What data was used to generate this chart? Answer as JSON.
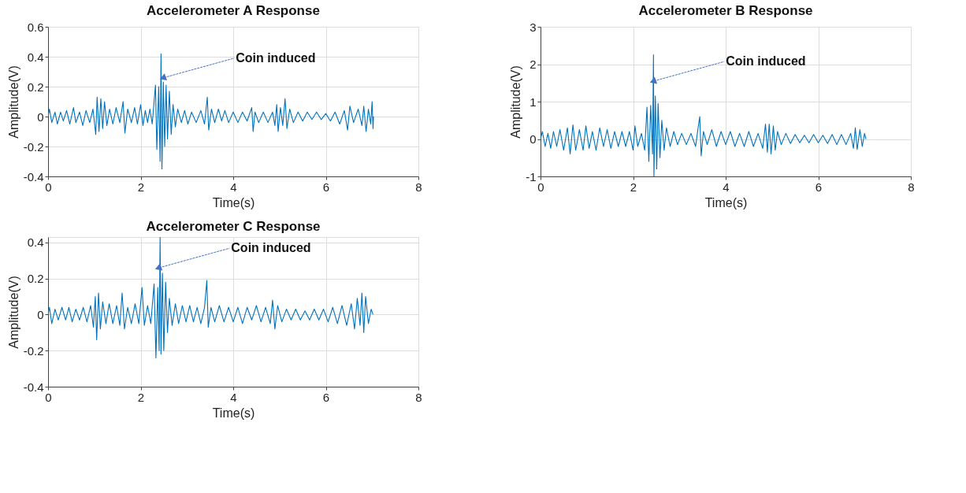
{
  "chart_data": [
    {
      "type": "line",
      "title": "Accelerometer A Response",
      "xlabel": "Time(s)",
      "ylabel": "Amplitude(V)",
      "xlim": [
        0,
        8
      ],
      "xticks": [
        0,
        2,
        4,
        6,
        8
      ],
      "ylim": [
        -0.4,
        0.6
      ],
      "yticks": [
        -0.4,
        -0.2,
        0,
        0.2,
        0.4,
        0.6
      ],
      "grid": true,
      "annotations": [
        {
          "text": "Coin induced",
          "x": 2.5,
          "y": 0.26
        }
      ],
      "series": [
        {
          "color": "#0072bd",
          "x": [
            0.0,
            0.03,
            0.08,
            0.15,
            0.2,
            0.27,
            0.33,
            0.4,
            0.47,
            0.55,
            0.6,
            0.68,
            0.75,
            0.82,
            0.9,
            0.97,
            1.03,
            1.06,
            1.1,
            1.14,
            1.18,
            1.22,
            1.27,
            1.33,
            1.4,
            1.47,
            1.55,
            1.62,
            1.66,
            1.72,
            1.8,
            1.87,
            1.93,
            2.0,
            2.05,
            2.1,
            2.15,
            2.2,
            2.25,
            2.32,
            2.35,
            2.39,
            2.42,
            2.44,
            2.46,
            2.49,
            2.52,
            2.55,
            2.58,
            2.62,
            2.66,
            2.7,
            2.75,
            2.8,
            2.88,
            2.95,
            3.02,
            3.1,
            3.2,
            3.3,
            3.38,
            3.44,
            3.47,
            3.53,
            3.6,
            3.68,
            3.75,
            3.82,
            3.9,
            4.0,
            4.1,
            4.2,
            4.3,
            4.4,
            4.43,
            4.47,
            4.55,
            4.65,
            4.75,
            4.85,
            4.9,
            4.94,
            4.97,
            5.02,
            5.07,
            5.12,
            5.16,
            5.22,
            5.3,
            5.4,
            5.5,
            5.6,
            5.7,
            5.8,
            5.9,
            6.0,
            6.1,
            6.2,
            6.3,
            6.4,
            6.47,
            6.52,
            6.6,
            6.7,
            6.78,
            6.82,
            6.87,
            6.92,
            6.97,
            7.0,
            7.02,
            7.03
          ],
          "values": [
            0.0,
            0.05,
            -0.04,
            0.03,
            -0.05,
            0.03,
            -0.03,
            0.04,
            -0.05,
            0.06,
            -0.04,
            0.03,
            -0.06,
            0.04,
            -0.04,
            0.05,
            -0.12,
            0.13,
            -0.1,
            0.12,
            -0.08,
            0.1,
            -0.06,
            0.05,
            -0.05,
            0.06,
            -0.04,
            0.1,
            -0.11,
            0.05,
            -0.04,
            0.06,
            -0.05,
            0.08,
            -0.06,
            0.04,
            -0.04,
            0.05,
            -0.05,
            0.21,
            -0.22,
            0.2,
            -0.3,
            0.42,
            -0.35,
            0.23,
            -0.2,
            0.21,
            -0.15,
            0.17,
            -0.12,
            0.08,
            -0.07,
            0.05,
            -0.04,
            0.04,
            -0.05,
            0.03,
            -0.04,
            0.04,
            -0.05,
            0.13,
            -0.09,
            0.05,
            -0.04,
            0.05,
            -0.03,
            0.04,
            -0.04,
            0.03,
            -0.04,
            0.03,
            -0.03,
            0.06,
            -0.1,
            0.03,
            -0.04,
            0.03,
            -0.04,
            0.03,
            -0.06,
            0.08,
            -0.1,
            0.06,
            -0.06,
            0.12,
            -0.08,
            0.05,
            -0.04,
            0.03,
            -0.03,
            0.03,
            -0.02,
            0.03,
            -0.02,
            0.02,
            -0.03,
            0.03,
            -0.05,
            0.04,
            -0.09,
            0.07,
            -0.04,
            0.05,
            -0.06,
            0.07,
            -0.1,
            0.05,
            -0.05,
            0.1,
            -0.08,
            0.0
          ]
        }
      ]
    },
    {
      "type": "line",
      "title": "Accelerometer B Response",
      "xlabel": "Time(s)",
      "ylabel": "Amplitude(V)",
      "xlim": [
        0,
        8
      ],
      "xticks": [
        0,
        2,
        4,
        6,
        8
      ],
      "ylim": [
        -1,
        3
      ],
      "yticks": [
        -1,
        0,
        1,
        2,
        3
      ],
      "grid": true,
      "annotations": [
        {
          "text": "Coin induced",
          "x": 2.45,
          "y": 1.55
        }
      ],
      "series": [
        {
          "color": "#0072bd",
          "x": [
            0.0,
            0.04,
            0.1,
            0.16,
            0.22,
            0.28,
            0.35,
            0.42,
            0.5,
            0.58,
            0.64,
            0.7,
            0.76,
            0.84,
            0.92,
            0.98,
            1.05,
            1.12,
            1.2,
            1.28,
            1.36,
            1.44,
            1.52,
            1.6,
            1.68,
            1.76,
            1.84,
            1.92,
            2.0,
            2.04,
            2.1,
            2.18,
            2.25,
            2.3,
            2.34,
            2.38,
            2.42,
            2.44,
            2.45,
            2.48,
            2.51,
            2.54,
            2.58,
            2.62,
            2.67,
            2.72,
            2.8,
            2.88,
            2.96,
            3.05,
            3.15,
            3.25,
            3.35,
            3.41,
            3.44,
            3.47,
            3.52,
            3.6,
            3.7,
            3.8,
            3.9,
            4.0,
            4.1,
            4.2,
            4.3,
            4.4,
            4.5,
            4.6,
            4.7,
            4.8,
            4.86,
            4.9,
            4.94,
            4.98,
            5.03,
            5.07,
            5.12,
            5.2,
            5.3,
            5.4,
            5.5,
            5.6,
            5.7,
            5.8,
            5.9,
            6.0,
            6.1,
            6.2,
            6.3,
            6.4,
            6.5,
            6.6,
            6.7,
            6.76,
            6.8,
            6.84,
            6.9,
            6.95,
            7.0,
            7.03
          ],
          "values": [
            0.0,
            0.2,
            -0.2,
            0.15,
            -0.25,
            0.2,
            -0.2,
            0.25,
            -0.3,
            0.3,
            -0.4,
            0.38,
            -0.3,
            0.25,
            -0.3,
            0.35,
            -0.25,
            0.2,
            -0.3,
            0.3,
            -0.2,
            0.25,
            -0.25,
            0.2,
            -0.2,
            0.2,
            -0.2,
            0.2,
            -0.3,
            0.35,
            -0.2,
            0.15,
            -0.3,
            0.85,
            -0.6,
            0.9,
            -0.4,
            2.25,
            -1.0,
            1.15,
            -0.8,
            0.95,
            -0.5,
            0.5,
            -0.3,
            0.3,
            -0.2,
            0.2,
            -0.15,
            0.15,
            -0.15,
            0.15,
            -0.2,
            0.35,
            0.6,
            -0.45,
            0.2,
            -0.15,
            0.25,
            -0.2,
            0.2,
            -0.15,
            0.2,
            -0.2,
            0.15,
            -0.2,
            0.2,
            -0.2,
            0.15,
            -0.25,
            0.4,
            -0.35,
            0.4,
            -0.4,
            0.35,
            -0.3,
            0.2,
            -0.15,
            0.15,
            -0.12,
            0.12,
            -0.1,
            0.1,
            -0.1,
            0.12,
            -0.1,
            0.1,
            -0.12,
            0.12,
            -0.15,
            0.12,
            -0.15,
            0.15,
            -0.25,
            0.3,
            -0.28,
            0.25,
            -0.2,
            0.15,
            0.0
          ]
        }
      ]
    },
    {
      "type": "line",
      "title": "Accelerometer C Response",
      "xlabel": "Time(s)",
      "ylabel": "Amplitude(V)",
      "xlim": [
        0,
        8
      ],
      "xticks": [
        0,
        2,
        4,
        6,
        8
      ],
      "ylim": [
        -0.4,
        0.43
      ],
      "yticks": [
        -0.4,
        -0.2,
        0,
        0.2,
        0.4
      ],
      "grid": true,
      "annotations": [
        {
          "text": "Coin induced",
          "x": 2.4,
          "y": 0.26
        }
      ],
      "series": [
        {
          "color": "#0072bd",
          "x": [
            0.0,
            0.03,
            0.08,
            0.15,
            0.22,
            0.3,
            0.38,
            0.45,
            0.52,
            0.6,
            0.68,
            0.76,
            0.84,
            0.92,
            0.98,
            1.02,
            1.05,
            1.09,
            1.13,
            1.18,
            1.25,
            1.32,
            1.4,
            1.48,
            1.55,
            1.6,
            1.65,
            1.72,
            1.8,
            1.88,
            1.96,
            2.03,
            2.08,
            2.15,
            2.22,
            2.29,
            2.33,
            2.37,
            2.4,
            2.42,
            2.44,
            2.47,
            2.5,
            2.54,
            2.58,
            2.62,
            2.68,
            2.75,
            2.82,
            2.9,
            2.98,
            3.06,
            3.14,
            3.22,
            3.3,
            3.38,
            3.43,
            3.46,
            3.52,
            3.6,
            3.7,
            3.8,
            3.9,
            4.0,
            4.1,
            4.2,
            4.3,
            4.4,
            4.5,
            4.6,
            4.7,
            4.8,
            4.85,
            4.9,
            4.96,
            5.05,
            5.15,
            5.25,
            5.35,
            5.45,
            5.55,
            5.65,
            5.75,
            5.85,
            5.95,
            6.05,
            6.15,
            6.25,
            6.35,
            6.45,
            6.55,
            6.62,
            6.68,
            6.74,
            6.78,
            6.82,
            6.86,
            6.92,
            6.98,
            7.02
          ],
          "values": [
            0.0,
            0.04,
            -0.05,
            0.03,
            -0.03,
            0.04,
            -0.03,
            0.04,
            -0.04,
            0.03,
            -0.03,
            0.04,
            -0.04,
            0.05,
            -0.07,
            0.1,
            -0.14,
            0.12,
            -0.08,
            0.07,
            -0.05,
            0.06,
            -0.05,
            0.05,
            -0.06,
            0.12,
            -0.08,
            0.04,
            -0.05,
            0.06,
            -0.05,
            0.15,
            -0.06,
            0.05,
            -0.05,
            0.17,
            -0.24,
            0.15,
            -0.2,
            0.43,
            -0.22,
            0.23,
            -0.2,
            0.18,
            -0.1,
            0.09,
            -0.06,
            0.06,
            -0.05,
            0.05,
            -0.04,
            0.05,
            -0.04,
            0.04,
            -0.05,
            0.04,
            0.19,
            -0.07,
            0.04,
            -0.04,
            0.05,
            -0.04,
            0.04,
            -0.04,
            0.04,
            -0.05,
            0.04,
            -0.03,
            0.05,
            -0.04,
            0.04,
            -0.05,
            0.08,
            -0.08,
            0.05,
            -0.04,
            0.03,
            -0.03,
            0.03,
            -0.03,
            0.02,
            -0.03,
            0.03,
            -0.03,
            0.03,
            -0.04,
            0.04,
            -0.05,
            0.05,
            -0.06,
            0.06,
            -0.08,
            0.09,
            -0.06,
            0.12,
            -0.1,
            0.1,
            -0.05,
            0.03,
            0.0
          ]
        }
      ]
    }
  ]
}
